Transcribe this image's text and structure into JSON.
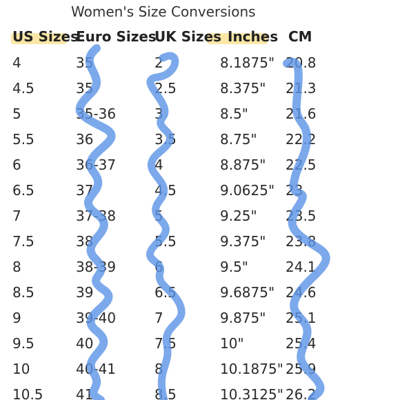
{
  "title": "Women's Size Conversions",
  "headers": [
    "US Sizes",
    "Euro Sizes",
    "UK Sizes",
    "Inches",
    "CM"
  ],
  "rows": [
    [
      "4",
      "35",
      "2",
      "8.1875\"",
      "20.8"
    ],
    [
      "4.5",
      "35",
      "2.5",
      "8.375\"",
      "21.3"
    ],
    [
      "5",
      "35-36",
      "3",
      "8.5\"",
      "21.6"
    ],
    [
      "5.5",
      "36",
      "3.5",
      "8.75\"",
      "22.2"
    ],
    [
      "6",
      "36-37",
      "4",
      "8.875\"",
      "22.5"
    ],
    [
      "6.5",
      "37",
      "4.5",
      "9.0625\"",
      "23"
    ],
    [
      "7",
      "37-38",
      "5",
      "9.25\"",
      "23.5"
    ],
    [
      "7.5",
      "38",
      "5.5",
      "9.375\"",
      "23.8"
    ],
    [
      "8",
      "38-39",
      "6",
      "9.5\"",
      "24.1"
    ],
    [
      "8.5",
      "39",
      "6.5",
      "9.6875\"",
      "24.6"
    ],
    [
      "9",
      "39-40",
      "7",
      "9.875\"",
      "25.1"
    ],
    [
      "9.5",
      "40",
      "7.5",
      "10\"",
      "25.4"
    ],
    [
      "10",
      "40-41",
      "8",
      "10.1875\"",
      "25.9"
    ],
    [
      "10.5",
      "41",
      "8.5",
      "10.3125\"",
      "26.2"
    ]
  ],
  "colors": {
    "highlight": "#fbe7a6",
    "ribbon": "#5b93e6",
    "text": "#2a2a2a"
  }
}
